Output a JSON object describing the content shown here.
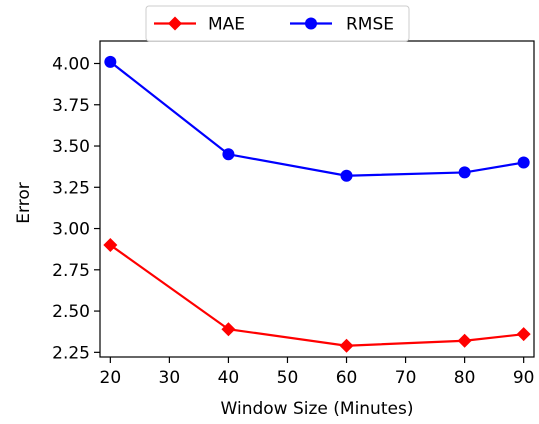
{
  "chart_data": {
    "type": "line",
    "title": "",
    "xlabel": "Window Size (Minutes)",
    "ylabel": "Error",
    "x": [
      20,
      40,
      60,
      80,
      90
    ],
    "xlim": [
      18.25,
      91.75
    ],
    "ylim": [
      2.2217,
      4.1363
    ],
    "xticks": [
      20,
      30,
      40,
      50,
      60,
      70,
      80,
      90
    ],
    "xtick_labels": [
      "20",
      "30",
      "40",
      "50",
      "60",
      "70",
      "80",
      "90"
    ],
    "yticks": [
      2.25,
      2.5,
      2.75,
      3.0,
      3.25,
      3.5,
      3.75,
      4.0
    ],
    "ytick_labels": [
      "2.25",
      "2.50",
      "2.75",
      "3.00",
      "3.25",
      "3.50",
      "3.75",
      "4.00"
    ],
    "grid": false,
    "legend_position": "top-center, above plot",
    "series": [
      {
        "name": "MAE",
        "color": "#ff0000",
        "marker": "diamond",
        "values": [
          2.9,
          2.39,
          2.29,
          2.32,
          2.36
        ]
      },
      {
        "name": "RMSE",
        "color": "#0000ff",
        "marker": "circle",
        "values": [
          4.01,
          3.45,
          3.32,
          3.34,
          3.4
        ]
      }
    ]
  }
}
